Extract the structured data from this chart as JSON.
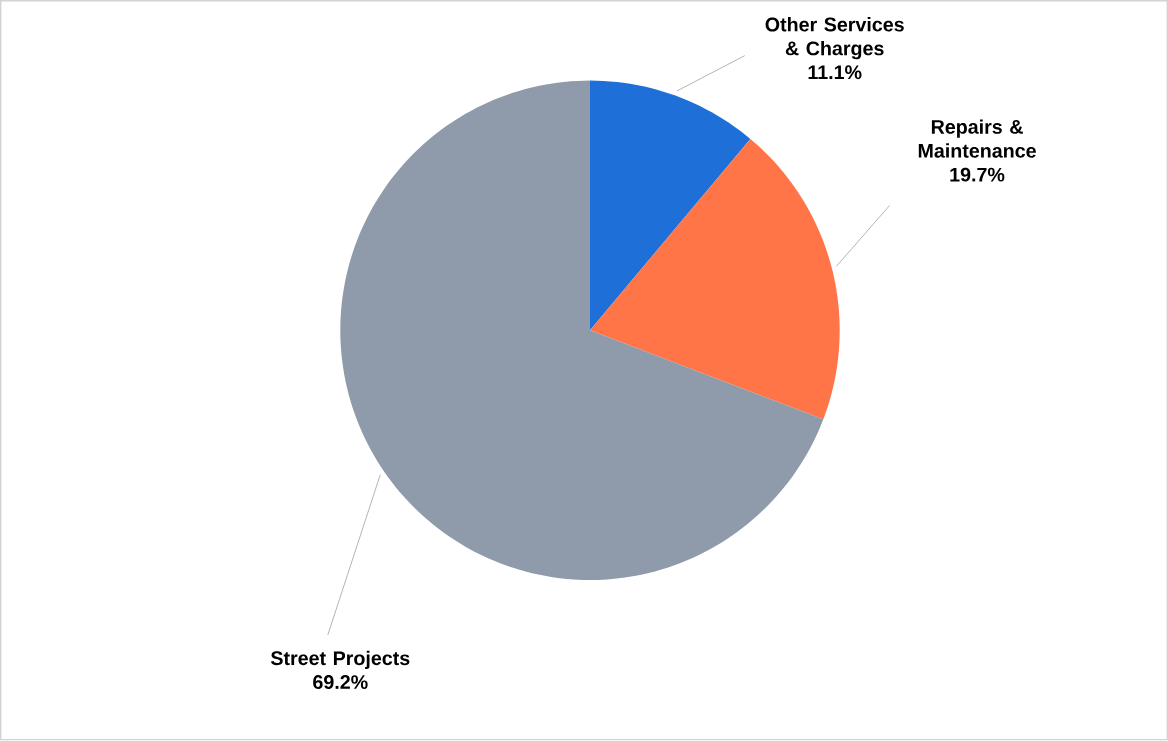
{
  "chart_data": {
    "type": "pie",
    "categories": [
      "Other Services & Charges",
      "Repairs & Maintenance",
      "Street Projects"
    ],
    "values": [
      11.1,
      19.7,
      69.2
    ],
    "value_labels": [
      "11.1%",
      "19.7%",
      "69.2%"
    ],
    "colors": [
      "#1f6fd8",
      "#ff7548",
      "#8f9aaa"
    ],
    "legend": false
  }
}
